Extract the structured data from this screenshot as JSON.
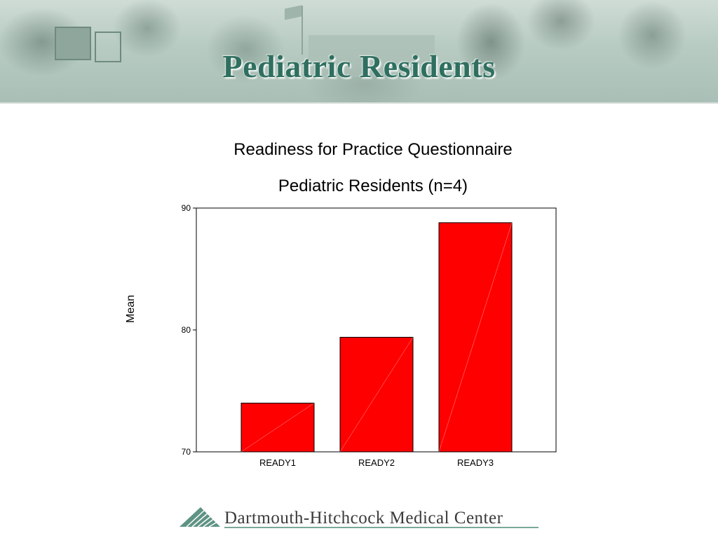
{
  "slide": {
    "banner_title": "Pediatric Residents",
    "footer_text": "Dartmouth-Hitchcock Medical Center"
  },
  "chart_data": {
    "type": "bar",
    "title": "Readiness for Practice Questionnaire",
    "subtitle": "Pediatric Residents (n=4)",
    "xlabel": "",
    "ylabel": "Mean",
    "categories": [
      "READY1",
      "READY2",
      "READY3"
    ],
    "values": [
      74.0,
      79.4,
      88.8
    ],
    "ylim": [
      70,
      90
    ],
    "yticks": [
      70,
      80,
      90
    ],
    "bar_color": "#ff0000",
    "grid": false
  },
  "colors": {
    "title_green": "#2f6f60",
    "bar_red": "#ff0000"
  }
}
